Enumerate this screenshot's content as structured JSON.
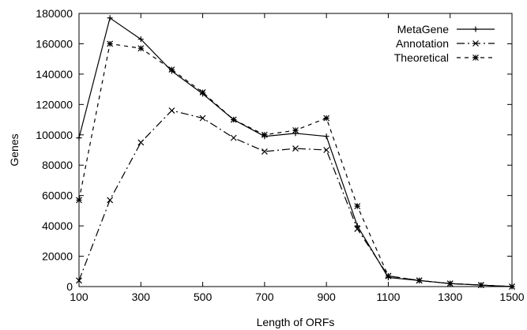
{
  "chart_data": {
    "type": "line",
    "title": "",
    "xlabel": "Length of ORFs",
    "ylabel": "Genes",
    "xlim": [
      100,
      1500
    ],
    "ylim": [
      0,
      180000
    ],
    "x_ticks": [
      100,
      300,
      500,
      700,
      900,
      1100,
      1300,
      1500
    ],
    "y_ticks": [
      0,
      20000,
      40000,
      60000,
      80000,
      100000,
      120000,
      140000,
      160000,
      180000
    ],
    "grid": false,
    "legend_position": "top-right",
    "x": [
      100,
      200,
      300,
      400,
      500,
      600,
      700,
      800,
      900,
      1000,
      1100,
      1200,
      1300,
      1400,
      1500
    ],
    "series": [
      {
        "name": "MetaGene",
        "values": [
          98000,
          177000,
          163000,
          142000,
          127000,
          110000,
          99000,
          101000,
          99000,
          40000,
          6000,
          4000,
          2000,
          1000,
          0
        ],
        "marker": "plus",
        "dash": "solid",
        "color": "#000000"
      },
      {
        "name": "Annotation",
        "values": [
          4000,
          57000,
          95000,
          116000,
          111000,
          98000,
          89000,
          91000,
          90000,
          38000,
          7000,
          4000,
          2000,
          1000,
          0
        ],
        "marker": "cross",
        "dash": "dash-dot",
        "color": "#000000"
      },
      {
        "name": "Theoretical",
        "values": [
          57000,
          160000,
          157000,
          143000,
          128000,
          110000,
          100000,
          103000,
          111000,
          53000,
          7000,
          4000,
          2000,
          1000,
          0
        ],
        "marker": "star",
        "dash": "dashed",
        "color": "#000000"
      }
    ]
  }
}
